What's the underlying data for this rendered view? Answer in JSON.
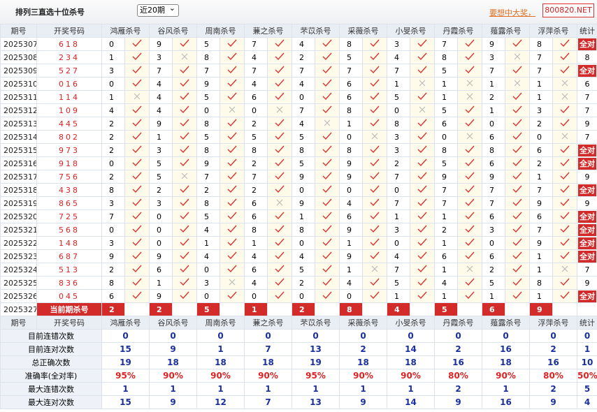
{
  "header": {
    "title": "排列三直选十位杀号",
    "select": "近20期",
    "link": "要想中大奖，",
    "logo": "800820.NET"
  },
  "table": {
    "columns": [
      "期号",
      "开奖号码",
      "鸿雁杀号",
      "谷风杀号",
      "周南杀号",
      "蒹之杀号",
      "芣苡杀号",
      "采薇杀号",
      "小旻杀号",
      "丹霞杀号",
      "薤露杀号",
      "浮萍杀号",
      "统计"
    ],
    "rows": [
      {
        "period": "2025307",
        "draw": "618",
        "kills": [
          {
            "value": 0,
            "hit": true
          },
          {
            "value": 9,
            "hit": true
          },
          {
            "value": 5,
            "hit": true
          },
          {
            "value": 7,
            "hit": true
          },
          {
            "value": 4,
            "hit": true
          },
          {
            "value": 8,
            "hit": true
          },
          {
            "value": 3,
            "hit": true
          },
          {
            "value": 7,
            "hit": true
          },
          {
            "value": 9,
            "hit": true
          },
          {
            "value": 8,
            "hit": true
          }
        ],
        "stat": "全对"
      },
      {
        "period": "2025308",
        "draw": "234",
        "kills": [
          {
            "value": 1,
            "hit": true
          },
          {
            "value": 3,
            "hit": false
          },
          {
            "value": 8,
            "hit": true
          },
          {
            "value": 4,
            "hit": true
          },
          {
            "value": 2,
            "hit": true
          },
          {
            "value": 5,
            "hit": true
          },
          {
            "value": 4,
            "hit": true
          },
          {
            "value": 8,
            "hit": true
          },
          {
            "value": 3,
            "hit": false
          },
          {
            "value": 7,
            "hit": true
          }
        ],
        "stat": 8
      },
      {
        "period": "2025309",
        "draw": "527",
        "kills": [
          {
            "value": 3,
            "hit": true
          },
          {
            "value": 7,
            "hit": true
          },
          {
            "value": 7,
            "hit": true
          },
          {
            "value": 7,
            "hit": true
          },
          {
            "value": 7,
            "hit": true
          },
          {
            "value": 7,
            "hit": true
          },
          {
            "value": 7,
            "hit": true
          },
          {
            "value": 5,
            "hit": true
          },
          {
            "value": 7,
            "hit": true
          },
          {
            "value": 7,
            "hit": true
          }
        ],
        "stat": "全对"
      },
      {
        "period": "2025310",
        "draw": "016",
        "kills": [
          {
            "value": 0,
            "hit": true
          },
          {
            "value": 4,
            "hit": true
          },
          {
            "value": 9,
            "hit": true
          },
          {
            "value": 4,
            "hit": true
          },
          {
            "value": 4,
            "hit": true
          },
          {
            "value": 6,
            "hit": true
          },
          {
            "value": 1,
            "hit": false
          },
          {
            "value": 1,
            "hit": false
          },
          {
            "value": 1,
            "hit": false
          },
          {
            "value": 1,
            "hit": false
          }
        ],
        "stat": 6
      },
      {
        "period": "2025311",
        "draw": "114",
        "kills": [
          {
            "value": 1,
            "hit": false
          },
          {
            "value": 4,
            "hit": true
          },
          {
            "value": 5,
            "hit": true
          },
          {
            "value": 6,
            "hit": true
          },
          {
            "value": 0,
            "hit": true
          },
          {
            "value": 6,
            "hit": true
          },
          {
            "value": 5,
            "hit": true
          },
          {
            "value": 1,
            "hit": false
          },
          {
            "value": 2,
            "hit": true
          },
          {
            "value": 1,
            "hit": false
          }
        ],
        "stat": 7
      },
      {
        "period": "2025312",
        "draw": "109",
        "kills": [
          {
            "value": 4,
            "hit": true
          },
          {
            "value": 4,
            "hit": true
          },
          {
            "value": 0,
            "hit": false
          },
          {
            "value": 0,
            "hit": false
          },
          {
            "value": 7,
            "hit": true
          },
          {
            "value": 8,
            "hit": true
          },
          {
            "value": 0,
            "hit": false
          },
          {
            "value": 5,
            "hit": true
          },
          {
            "value": 1,
            "hit": true
          },
          {
            "value": 3,
            "hit": true
          }
        ],
        "stat": 7
      },
      {
        "period": "2025313",
        "draw": "445",
        "kills": [
          {
            "value": 2,
            "hit": true
          },
          {
            "value": 9,
            "hit": true
          },
          {
            "value": 8,
            "hit": true
          },
          {
            "value": 2,
            "hit": true
          },
          {
            "value": 4,
            "hit": false
          },
          {
            "value": 1,
            "hit": true
          },
          {
            "value": 8,
            "hit": true
          },
          {
            "value": 6,
            "hit": true
          },
          {
            "value": 0,
            "hit": true
          },
          {
            "value": 2,
            "hit": true
          }
        ],
        "stat": 9
      },
      {
        "period": "2025314",
        "draw": "802",
        "kills": [
          {
            "value": 2,
            "hit": true
          },
          {
            "value": 1,
            "hit": true
          },
          {
            "value": 5,
            "hit": true
          },
          {
            "value": 5,
            "hit": true
          },
          {
            "value": 5,
            "hit": true
          },
          {
            "value": 0,
            "hit": false
          },
          {
            "value": 3,
            "hit": true
          },
          {
            "value": 0,
            "hit": false
          },
          {
            "value": 6,
            "hit": true
          },
          {
            "value": 0,
            "hit": false
          }
        ],
        "stat": 7
      },
      {
        "period": "2025315",
        "draw": "973",
        "kills": [
          {
            "value": 2,
            "hit": true
          },
          {
            "value": 3,
            "hit": true
          },
          {
            "value": 8,
            "hit": true
          },
          {
            "value": 8,
            "hit": true
          },
          {
            "value": 8,
            "hit": true
          },
          {
            "value": 8,
            "hit": true
          },
          {
            "value": 3,
            "hit": true
          },
          {
            "value": 8,
            "hit": true
          },
          {
            "value": 8,
            "hit": true
          },
          {
            "value": 6,
            "hit": true
          }
        ],
        "stat": "全对"
      },
      {
        "period": "2025316",
        "draw": "918",
        "kills": [
          {
            "value": 0,
            "hit": true
          },
          {
            "value": 5,
            "hit": true
          },
          {
            "value": 9,
            "hit": true
          },
          {
            "value": 2,
            "hit": true
          },
          {
            "value": 5,
            "hit": true
          },
          {
            "value": 9,
            "hit": true
          },
          {
            "value": 2,
            "hit": true
          },
          {
            "value": 5,
            "hit": true
          },
          {
            "value": 6,
            "hit": true
          },
          {
            "value": 2,
            "hit": true
          }
        ],
        "stat": "全对"
      },
      {
        "period": "2025317",
        "draw": "756",
        "kills": [
          {
            "value": 2,
            "hit": true
          },
          {
            "value": 5,
            "hit": false
          },
          {
            "value": 7,
            "hit": true
          },
          {
            "value": 7,
            "hit": true
          },
          {
            "value": 9,
            "hit": true
          },
          {
            "value": 9,
            "hit": true
          },
          {
            "value": 7,
            "hit": true
          },
          {
            "value": 9,
            "hit": true
          },
          {
            "value": 9,
            "hit": true
          },
          {
            "value": 1,
            "hit": true
          }
        ],
        "stat": 9
      },
      {
        "period": "2025318",
        "draw": "438",
        "kills": [
          {
            "value": 8,
            "hit": true
          },
          {
            "value": 2,
            "hit": true
          },
          {
            "value": 2,
            "hit": true
          },
          {
            "value": 2,
            "hit": true
          },
          {
            "value": 0,
            "hit": true
          },
          {
            "value": 0,
            "hit": true
          },
          {
            "value": 0,
            "hit": true
          },
          {
            "value": 7,
            "hit": true
          },
          {
            "value": 7,
            "hit": true
          },
          {
            "value": 7,
            "hit": true
          }
        ],
        "stat": "全对"
      },
      {
        "period": "2025319",
        "draw": "865",
        "kills": [
          {
            "value": 3,
            "hit": true
          },
          {
            "value": 3,
            "hit": true
          },
          {
            "value": 8,
            "hit": true
          },
          {
            "value": 6,
            "hit": false
          },
          {
            "value": 9,
            "hit": true
          },
          {
            "value": 4,
            "hit": true
          },
          {
            "value": 7,
            "hit": true
          },
          {
            "value": 7,
            "hit": true
          },
          {
            "value": 7,
            "hit": true
          },
          {
            "value": 9,
            "hit": true
          }
        ],
        "stat": 9
      },
      {
        "period": "2025320",
        "draw": "725",
        "kills": [
          {
            "value": 7,
            "hit": true
          },
          {
            "value": 0,
            "hit": true
          },
          {
            "value": 5,
            "hit": true
          },
          {
            "value": 6,
            "hit": true
          },
          {
            "value": 1,
            "hit": true
          },
          {
            "value": 6,
            "hit": true
          },
          {
            "value": 1,
            "hit": true
          },
          {
            "value": 1,
            "hit": true
          },
          {
            "value": 6,
            "hit": true
          },
          {
            "value": 6,
            "hit": true
          }
        ],
        "stat": "全对"
      },
      {
        "period": "2025321",
        "draw": "568",
        "kills": [
          {
            "value": 0,
            "hit": true
          },
          {
            "value": 0,
            "hit": true
          },
          {
            "value": 4,
            "hit": true
          },
          {
            "value": 8,
            "hit": true
          },
          {
            "value": 8,
            "hit": true
          },
          {
            "value": 9,
            "hit": true
          },
          {
            "value": 3,
            "hit": true
          },
          {
            "value": 2,
            "hit": true
          },
          {
            "value": 3,
            "hit": true
          },
          {
            "value": 7,
            "hit": true
          }
        ],
        "stat": "全对"
      },
      {
        "period": "2025322",
        "draw": "148",
        "kills": [
          {
            "value": 3,
            "hit": true
          },
          {
            "value": 0,
            "hit": true
          },
          {
            "value": 1,
            "hit": true
          },
          {
            "value": 1,
            "hit": true
          },
          {
            "value": 0,
            "hit": true
          },
          {
            "value": 1,
            "hit": true
          },
          {
            "value": 0,
            "hit": true
          },
          {
            "value": 1,
            "hit": true
          },
          {
            "value": 0,
            "hit": true
          },
          {
            "value": 9,
            "hit": true
          }
        ],
        "stat": "全对"
      },
      {
        "period": "2025323",
        "draw": "687",
        "kills": [
          {
            "value": 9,
            "hit": true
          },
          {
            "value": 9,
            "hit": true
          },
          {
            "value": 4,
            "hit": true
          },
          {
            "value": 4,
            "hit": true
          },
          {
            "value": 4,
            "hit": true
          },
          {
            "value": 9,
            "hit": true
          },
          {
            "value": 4,
            "hit": true
          },
          {
            "value": 6,
            "hit": true
          },
          {
            "value": 6,
            "hit": true
          },
          {
            "value": 1,
            "hit": true
          }
        ],
        "stat": "全对"
      },
      {
        "period": "2025324",
        "draw": "513",
        "kills": [
          {
            "value": 2,
            "hit": true
          },
          {
            "value": 6,
            "hit": true
          },
          {
            "value": 0,
            "hit": true
          },
          {
            "value": 6,
            "hit": true
          },
          {
            "value": 5,
            "hit": true
          },
          {
            "value": 1,
            "hit": false
          },
          {
            "value": 7,
            "hit": true
          },
          {
            "value": 1,
            "hit": false
          },
          {
            "value": 2,
            "hit": true
          },
          {
            "value": 1,
            "hit": false
          }
        ],
        "stat": 7
      },
      {
        "period": "2025325",
        "draw": "836",
        "kills": [
          {
            "value": 8,
            "hit": true
          },
          {
            "value": 1,
            "hit": true
          },
          {
            "value": 3,
            "hit": false
          },
          {
            "value": 4,
            "hit": true
          },
          {
            "value": 2,
            "hit": true
          },
          {
            "value": 4,
            "hit": true
          },
          {
            "value": 5,
            "hit": true
          },
          {
            "value": 4,
            "hit": true
          },
          {
            "value": 5,
            "hit": true
          },
          {
            "value": 8,
            "hit": true
          }
        ],
        "stat": 9
      },
      {
        "period": "2025326",
        "draw": "045",
        "kills": [
          {
            "value": 6,
            "hit": true
          },
          {
            "value": 9,
            "hit": true
          },
          {
            "value": 0,
            "hit": true
          },
          {
            "value": 0,
            "hit": true
          },
          {
            "value": 0,
            "hit": true
          },
          {
            "value": 0,
            "hit": true
          },
          {
            "value": 1,
            "hit": true
          },
          {
            "value": 1,
            "hit": true
          },
          {
            "value": 1,
            "hit": true
          },
          {
            "value": 1,
            "hit": true
          }
        ],
        "stat": "全对"
      }
    ],
    "current": {
      "period": "2025327",
      "label": "当前期杀号",
      "kills": [
        2,
        2,
        5,
        1,
        2,
        8,
        4,
        5,
        6,
        9
      ]
    },
    "summary": [
      {
        "label": "目前连错次数",
        "values": [
          0,
          0,
          0,
          0,
          0,
          0,
          0,
          0,
          0,
          0,
          0
        ]
      },
      {
        "label": "目前连对次数",
        "values": [
          15,
          9,
          1,
          7,
          13,
          2,
          14,
          2,
          16,
          2,
          1
        ]
      },
      {
        "label": "总正确次数",
        "values": [
          19,
          18,
          18,
          18,
          19,
          18,
          18,
          16,
          18,
          16,
          10
        ]
      },
      {
        "label": "准确率(全对率)",
        "values": [
          "95%",
          "90%",
          "90%",
          "90%",
          "95%",
          "90%",
          "90%",
          "80%",
          "90%",
          "80%",
          "50%"
        ]
      },
      {
        "label": "最大连错次数",
        "values": [
          1,
          1,
          1,
          1,
          1,
          1,
          1,
          2,
          1,
          2,
          5
        ]
      },
      {
        "label": "最大连对次数",
        "values": [
          15,
          9,
          12,
          7,
          13,
          9,
          14,
          9,
          16,
          9,
          4
        ]
      }
    ]
  }
}
